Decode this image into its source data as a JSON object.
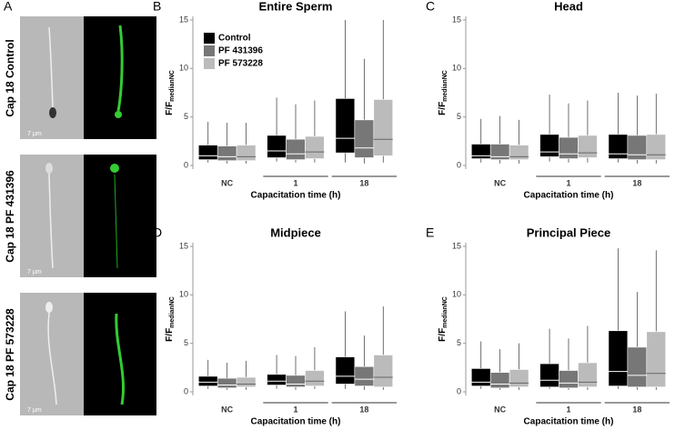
{
  "panel_a": {
    "label": "A",
    "rows": [
      {
        "label": "Cap 18 Control",
        "scale": "7 μm"
      },
      {
        "label": "Cap 18 PF 431396",
        "scale": "7 μm"
      },
      {
        "label": "Cap 18 PF 573228",
        "scale": "7 μm"
      }
    ]
  },
  "chart_data": [
    {
      "type": "box",
      "panel_label": "B",
      "title": "Entire Sperm",
      "ylabel": "F/F",
      "ylabel_sub": "medianNC",
      "xlabel": "Capacitation time (h)",
      "categories": [
        "NC",
        "1",
        "18"
      ],
      "ylim": [
        0,
        15
      ],
      "yticks": [
        0,
        5,
        10,
        15
      ],
      "legend": "top-left",
      "series": [
        {
          "name": "Control",
          "color": "#000000",
          "min": [
            0.3,
            0.4,
            0.3
          ],
          "q1": [
            0.6,
            0.8,
            1.3
          ],
          "median": [
            1.0,
            1.5,
            2.8
          ],
          "q3": [
            2.1,
            3.1,
            6.9
          ],
          "max": [
            4.5,
            7.0,
            15
          ]
        },
        {
          "name": "PF 431396",
          "color": "#777777",
          "min": [
            0.2,
            0.3,
            0.2
          ],
          "q1": [
            0.5,
            0.6,
            0.8
          ],
          "median": [
            0.9,
            1.2,
            1.8
          ],
          "q3": [
            2.0,
            2.7,
            4.7
          ],
          "max": [
            4.4,
            6.3,
            11.0
          ]
        },
        {
          "name": "PF 573228",
          "color": "#bbbbbb",
          "min": [
            0.2,
            0.3,
            0.3
          ],
          "q1": [
            0.5,
            0.7,
            1.0
          ],
          "median": [
            0.9,
            1.4,
            2.7
          ],
          "q3": [
            2.1,
            3.0,
            6.8
          ],
          "max": [
            4.4,
            6.7,
            15
          ]
        }
      ]
    },
    {
      "type": "box",
      "panel_label": "C",
      "title": "Head",
      "ylabel": "F/F",
      "ylabel_sub": "medianNC",
      "xlabel": "Capacitation time (h)",
      "categories": [
        "NC",
        "1",
        "18"
      ],
      "ylim": [
        0,
        15
      ],
      "yticks": [
        0,
        5,
        10,
        15
      ],
      "series": [
        {
          "color": "#000000",
          "min": [
            0.3,
            0.4,
            0.3
          ],
          "q1": [
            0.7,
            0.9,
            0.7
          ],
          "median": [
            1.0,
            1.4,
            1.2
          ],
          "q3": [
            2.2,
            3.2,
            3.2
          ],
          "max": [
            4.8,
            7.3,
            7.5
          ]
        },
        {
          "color": "#777777",
          "min": [
            0.2,
            0.3,
            0.2
          ],
          "q1": [
            0.6,
            0.7,
            0.6
          ],
          "median": [
            0.9,
            1.2,
            1.1
          ],
          "q3": [
            2.2,
            2.9,
            3.1
          ],
          "max": [
            5.1,
            6.4,
            7.2
          ]
        },
        {
          "color": "#bbbbbb",
          "min": [
            0.2,
            0.3,
            0.2
          ],
          "q1": [
            0.6,
            0.8,
            0.6
          ],
          "median": [
            0.9,
            1.3,
            1.1
          ],
          "q3": [
            2.1,
            3.1,
            3.2
          ],
          "max": [
            4.7,
            6.7,
            7.4
          ]
        }
      ]
    },
    {
      "type": "box",
      "panel_label": "D",
      "title": "Midpiece",
      "ylabel": "F/F",
      "ylabel_sub": "medianNC",
      "xlabel": "Capacitation time (h)",
      "categories": [
        "NC",
        "1",
        "18"
      ],
      "ylim": [
        0,
        15
      ],
      "yticks": [
        0,
        5,
        10,
        15
      ],
      "series": [
        {
          "color": "#000000",
          "min": [
            0.3,
            0.3,
            0.3
          ],
          "q1": [
            0.6,
            0.7,
            0.8
          ],
          "median": [
            1.0,
            1.1,
            1.6
          ],
          "q3": [
            1.6,
            1.8,
            3.6
          ],
          "max": [
            3.3,
            3.8,
            8.3
          ]
        },
        {
          "color": "#777777",
          "min": [
            0.2,
            0.2,
            0.2
          ],
          "q1": [
            0.4,
            0.5,
            0.6
          ],
          "median": [
            0.7,
            0.8,
            1.3
          ],
          "q3": [
            1.4,
            1.7,
            2.6
          ],
          "max": [
            3.0,
            3.7,
            5.8
          ]
        },
        {
          "color": "#bbbbbb",
          "min": [
            0.2,
            0.3,
            0.2
          ],
          "q1": [
            0.5,
            0.6,
            0.5
          ],
          "median": [
            0.8,
            1.1,
            1.5
          ],
          "q3": [
            1.5,
            2.2,
            3.8
          ],
          "max": [
            3.2,
            4.6,
            8.8
          ]
        }
      ]
    },
    {
      "type": "box",
      "panel_label": "E",
      "title": "Principal Piece",
      "ylabel": "F/F",
      "ylabel_sub": "medianNC",
      "xlabel": "Capacitation time (h)",
      "categories": [
        "NC",
        "1",
        "18"
      ],
      "ylim": [
        0,
        15
      ],
      "yticks": [
        0,
        5,
        10,
        15
      ],
      "series": [
        {
          "color": "#000000",
          "min": [
            0.3,
            0.3,
            0.3
          ],
          "q1": [
            0.6,
            0.5,
            0.6
          ],
          "median": [
            1.0,
            1.2,
            2.1
          ],
          "q3": [
            2.4,
            2.9,
            6.3
          ],
          "max": [
            5.2,
            6.5,
            14.8
          ]
        },
        {
          "color": "#777777",
          "min": [
            0.2,
            0.2,
            0.2
          ],
          "q1": [
            0.4,
            0.4,
            0.5
          ],
          "median": [
            0.8,
            0.9,
            1.7
          ],
          "q3": [
            2.0,
            2.2,
            4.6
          ],
          "max": [
            4.4,
            5.5,
            10.3
          ]
        },
        {
          "color": "#bbbbbb",
          "min": [
            0.2,
            0.2,
            0.2
          ],
          "q1": [
            0.5,
            0.5,
            0.5
          ],
          "median": [
            0.9,
            1.0,
            1.9
          ],
          "q3": [
            2.3,
            3.0,
            6.2
          ],
          "max": [
            5.0,
            6.8,
            14.6
          ]
        }
      ]
    }
  ]
}
